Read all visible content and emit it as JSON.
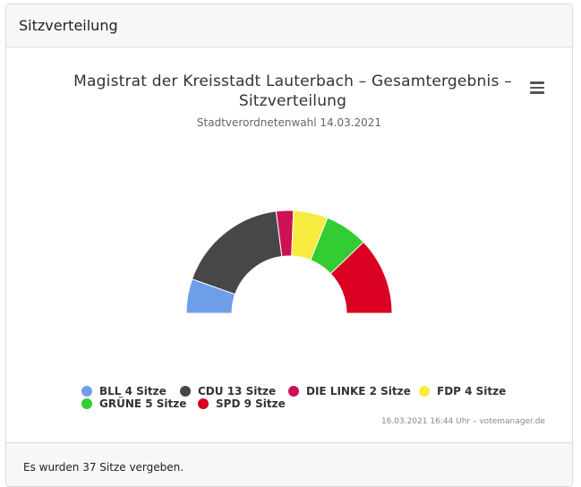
{
  "header": {
    "title": "Sitzverteilung"
  },
  "chart_data": {
    "type": "pie",
    "subtype": "semicircle-donut",
    "title": "Magistrat der Kreisstadt Lauterbach – Gesamtergebnis – Sitzverteilung",
    "subtitle": "Stadtverordnetenwahl 14.03.2021",
    "unit": "Sitze",
    "legend_position": "bottom",
    "slices": [
      {
        "name": "BLL",
        "value": 4,
        "color": "#6f9ee8"
      },
      {
        "name": "CDU",
        "value": 13,
        "color": "#474747"
      },
      {
        "name": "DIE LINKE",
        "value": 2,
        "color": "#cc1155"
      },
      {
        "name": "FDP",
        "value": 4,
        "color": "#f7ec3f"
      },
      {
        "name": "GRÜNE",
        "value": 5,
        "color": "#33cc33"
      },
      {
        "name": "SPD",
        "value": 9,
        "color": "#d90022"
      }
    ],
    "legend_labels": [
      "BLL 4 Sitze",
      "CDU 13 Sitze",
      "DIE LINKE 2 Sitze",
      "FDP 4 Sitze",
      "GRÜNE 5 Sitze",
      "SPD 9 Sitze"
    ]
  },
  "credits": "16.03.2021 16:44 Uhr – votemanager.de",
  "footer": {
    "text": "Es wurden 37 Sitze vergeben."
  },
  "icons": {
    "menu": "hamburger-menu-icon"
  }
}
